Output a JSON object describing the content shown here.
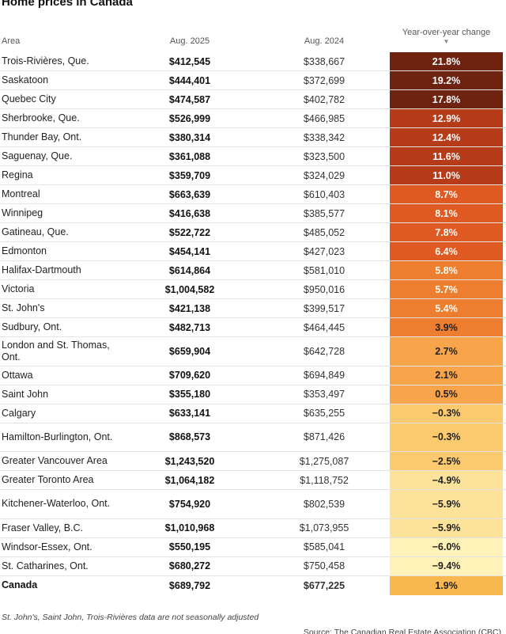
{
  "title": "Home prices in Canada",
  "headers": {
    "area": "Area",
    "col1": "Aug. 2025",
    "col2": "Aug. 2024",
    "col3": "Year-over-year change",
    "sort_indicator": "▼"
  },
  "chart_data": {
    "type": "table",
    "columns": [
      "Area",
      "Aug. 2025",
      "Aug. 2024",
      "Year-over-year change"
    ],
    "rows": [
      {
        "area": "Trois-Rivières, Que.",
        "aug2025": "$412,545",
        "aug2024": "$338,667",
        "change": "21.8%",
        "value": 21.8
      },
      {
        "area": "Saskatoon",
        "aug2025": "$444,401",
        "aug2024": "$372,699",
        "change": "19.2%",
        "value": 19.2
      },
      {
        "area": "Quebec City",
        "aug2025": "$474,587",
        "aug2024": "$402,782",
        "change": "17.8%",
        "value": 17.8
      },
      {
        "area": "Sherbrooke, Que.",
        "aug2025": "$526,999",
        "aug2024": "$466,985",
        "change": "12.9%",
        "value": 12.9
      },
      {
        "area": "Thunder Bay, Ont.",
        "aug2025": "$380,314",
        "aug2024": "$338,342",
        "change": "12.4%",
        "value": 12.4
      },
      {
        "area": "Saguenay, Que.",
        "aug2025": "$361,088",
        "aug2024": "$323,500",
        "change": "11.6%",
        "value": 11.6
      },
      {
        "area": "Regina",
        "aug2025": "$359,709",
        "aug2024": "$324,029",
        "change": "11.0%",
        "value": 11.0
      },
      {
        "area": "Montreal",
        "aug2025": "$663,639",
        "aug2024": "$610,403",
        "change": "8.7%",
        "value": 8.7
      },
      {
        "area": "Winnipeg",
        "aug2025": "$416,638",
        "aug2024": "$385,577",
        "change": "8.1%",
        "value": 8.1
      },
      {
        "area": "Gatineau, Que.",
        "aug2025": "$522,722",
        "aug2024": "$485,052",
        "change": "7.8%",
        "value": 7.8
      },
      {
        "area": "Edmonton",
        "aug2025": "$454,141",
        "aug2024": "$427,023",
        "change": "6.4%",
        "value": 6.4
      },
      {
        "area": "Halifax-Dartmouth",
        "aug2025": "$614,864",
        "aug2024": "$581,010",
        "change": "5.8%",
        "value": 5.8
      },
      {
        "area": "Victoria",
        "aug2025": "$1,004,582",
        "aug2024": "$950,016",
        "change": "5.7%",
        "value": 5.7
      },
      {
        "area": "St. John's",
        "aug2025": "$421,138",
        "aug2024": "$399,517",
        "change": "5.4%",
        "value": 5.4
      },
      {
        "area": "Sudbury, Ont.",
        "aug2025": "$482,713",
        "aug2024": "$464,445",
        "change": "3.9%",
        "value": 3.9
      },
      {
        "area": "London and St. Thomas, Ont.",
        "aug2025": "$659,904",
        "aug2024": "$642,728",
        "change": "2.7%",
        "value": 2.7
      },
      {
        "area": "Ottawa",
        "aug2025": "$709,620",
        "aug2024": "$694,849",
        "change": "2.1%",
        "value": 2.1
      },
      {
        "area": "Saint John",
        "aug2025": "$355,180",
        "aug2024": "$353,497",
        "change": "0.5%",
        "value": 0.5
      },
      {
        "area": "Calgary",
        "aug2025": "$633,141",
        "aug2024": "$635,255",
        "change": "−0.3%",
        "value": -0.3
      },
      {
        "area": "Hamilton-Burlington, Ont.",
        "aug2025": "$868,573",
        "aug2024": "$871,426",
        "change": "−0.3%",
        "value": -0.3
      },
      {
        "area": "Greater Vancouver Area",
        "aug2025": "$1,243,520",
        "aug2024": "$1,275,087",
        "change": "−2.5%",
        "value": -2.5
      },
      {
        "area": "Greater Toronto Area",
        "aug2025": "$1,064,182",
        "aug2024": "$1,118,752",
        "change": "−4.9%",
        "value": -4.9
      },
      {
        "area": "Kitchener-Waterloo, Ont.",
        "aug2025": "$754,920",
        "aug2024": "$802,539",
        "change": "−5.9%",
        "value": -5.9
      },
      {
        "area": "Fraser Valley, B.C.",
        "aug2025": "$1,010,968",
        "aug2024": "$1,073,955",
        "change": "−5.9%",
        "value": -5.9
      },
      {
        "area": "Windsor-Essex, Ont.",
        "aug2025": "$550,195",
        "aug2024": "$585,041",
        "change": "−6.0%",
        "value": -6.0
      },
      {
        "area": "St. Catharines, Ont.",
        "aug2025": "$680,272",
        "aug2024": "$750,458",
        "change": "−9.4%",
        "value": -9.4
      }
    ],
    "total": {
      "area": "Canada",
      "aug2025": "$689,792",
      "aug2024": "$677,225",
      "change": "1.9%",
      "value": 1.9
    }
  },
  "colors": {
    "scale": [
      "#ffffe0",
      "#fde9a6",
      "#fbc56a",
      "#f69a3e",
      "#e86a26",
      "#c9421a",
      "#9a2a12",
      "#5c1a0c"
    ],
    "total_cell": "#f8b84f"
  },
  "footer": {
    "note": "St. John's, Saint John, Trois-Rivières data are not seasonally adjusted",
    "source": "Source: The Canadian Real Estate Association (CBC)"
  }
}
